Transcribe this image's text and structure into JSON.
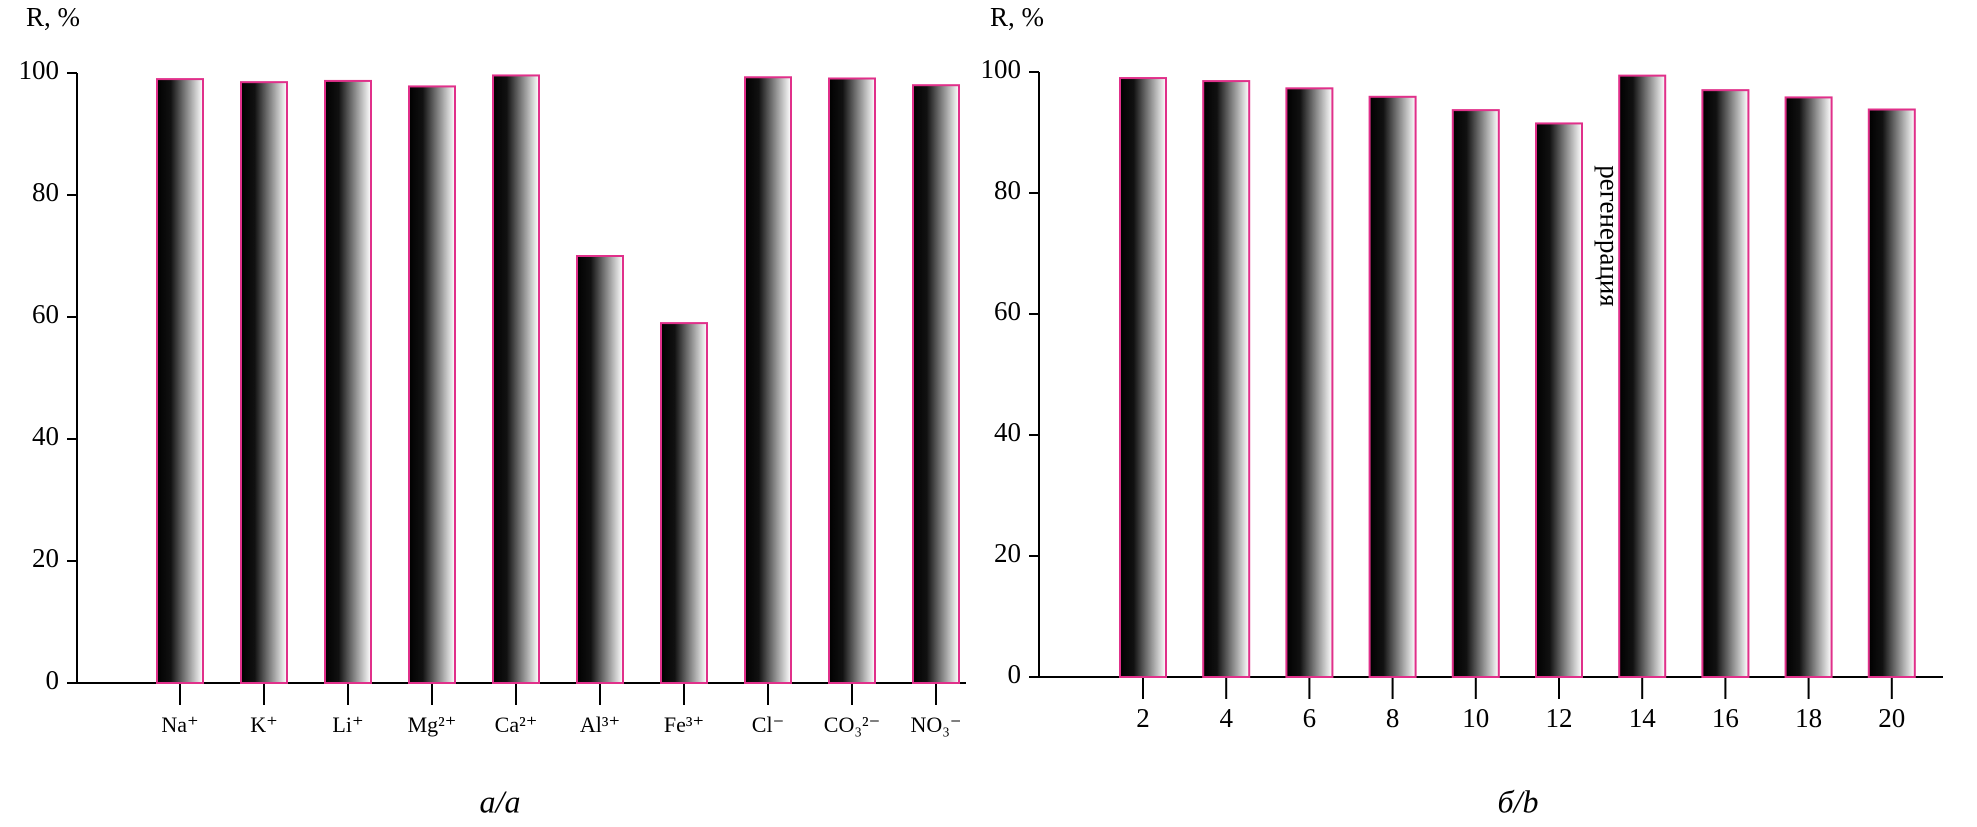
{
  "chart_data": [
    {
      "type": "bar",
      "y_label": "R, %",
      "caption": "а/a",
      "categories": [
        "Na⁺",
        "K⁺",
        "Li⁺",
        "Mg²⁺",
        "Ca²⁺",
        "Al³⁺",
        "Fe³⁺",
        "Cl⁻",
        "CO₃²⁻",
        "NO₃⁻"
      ],
      "values": [
        99,
        98.5,
        98.7,
        97.8,
        99.6,
        70,
        59,
        99.3,
        99.1,
        98
      ],
      "ylim": [
        0,
        100
      ],
      "yticks": [
        0,
        20,
        40,
        60,
        80,
        100
      ],
      "color": "#e0308a"
    },
    {
      "type": "bar",
      "y_label": "R, %",
      "caption": "б/b",
      "annotation": "регенерация",
      "categories": [
        "2",
        "4",
        "6",
        "8",
        "10",
        "12",
        "14",
        "16",
        "18",
        "20"
      ],
      "values": [
        99,
        98.5,
        97.3,
        95.9,
        93.7,
        91.5,
        99.4,
        97,
        95.8,
        93.8
      ],
      "ylim": [
        0,
        100
      ],
      "yticks": [
        0,
        20,
        40,
        60,
        80,
        100
      ],
      "color": "#e0308a"
    }
  ]
}
